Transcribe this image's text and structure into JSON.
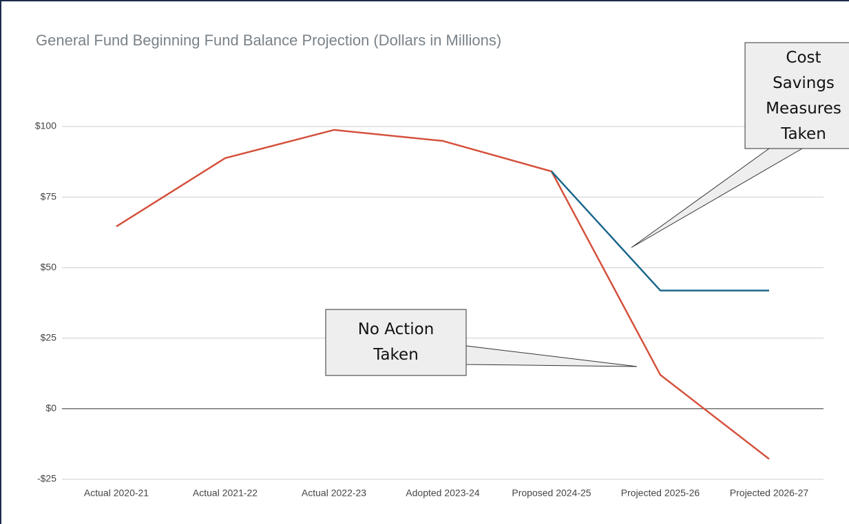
{
  "chart_data": {
    "type": "line",
    "title": "General Fund Beginning Fund Balance Projection (Dollars in Millions)",
    "categories": [
      "Actual 2020-21",
      "Actual 2021-22",
      "Actual 2022-23",
      "Adopted 2023-24",
      "Proposed 2024-25",
      "Projected 2025-26",
      "Projected 2026-27"
    ],
    "series": [
      {
        "name": "No Action Taken",
        "color": "#d4513c",
        "values": [
          64.6,
          88.8,
          98.8,
          94.9,
          84.1,
          12,
          -17.8
        ]
      },
      {
        "name": "Cost Savings Measures Taken",
        "color": "#19668b",
        "values": [
          null,
          null,
          null,
          null,
          84.1,
          41.9,
          41.9
        ]
      }
    ],
    "ylim": [
      -25,
      100
    ],
    "yticks": [
      {
        "value": -25,
        "label": "-$25"
      },
      {
        "value": 0,
        "label": "$0"
      },
      {
        "value": 25,
        "label": "$25"
      },
      {
        "value": 50,
        "label": "$50"
      },
      {
        "value": 75,
        "label": "$75"
      },
      {
        "value": 100,
        "label": "$100"
      }
    ],
    "grid": true
  }
}
